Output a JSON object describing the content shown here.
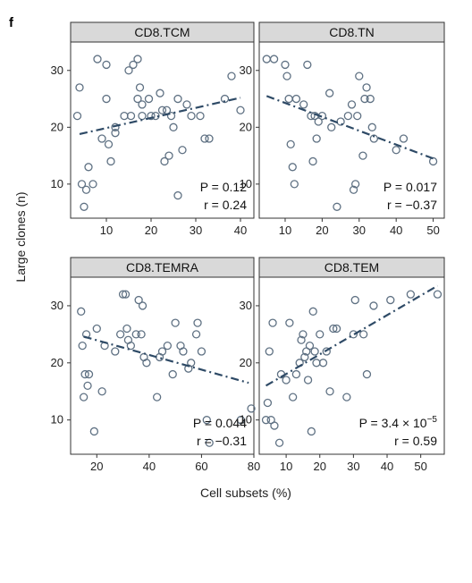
{
  "figure": {
    "panel_letter": "f",
    "xlabel": "Cell subsets (%)",
    "ylabel": "Large clones (n)"
  },
  "colors": {
    "point_stroke": "#5f7183",
    "trend_line": "#2e4a66",
    "strip_fill": "#d9d9d9"
  },
  "chart_data": [
    {
      "type": "scatter",
      "title": "CD8.TCM",
      "xlim": [
        2,
        43
      ],
      "ylim": [
        4,
        35
      ],
      "xticks": [
        10,
        20,
        30,
        40
      ],
      "yticks": [
        10,
        20,
        30
      ],
      "grid": false,
      "stats": {
        "p_text": "P = 0.12",
        "r_text": "r = 0.24"
      },
      "trend": {
        "x": [
          4,
          40
        ],
        "y": [
          18.8,
          25.2
        ]
      },
      "points": [
        {
          "x": 3.5,
          "y": 22
        },
        {
          "x": 4,
          "y": 27
        },
        {
          "x": 4.5,
          "y": 10
        },
        {
          "x": 5,
          "y": 6
        },
        {
          "x": 5.5,
          "y": 9
        },
        {
          "x": 6,
          "y": 13
        },
        {
          "x": 7,
          "y": 10
        },
        {
          "x": 8,
          "y": 32
        },
        {
          "x": 9,
          "y": 18
        },
        {
          "x": 10,
          "y": 31
        },
        {
          "x": 10,
          "y": 25
        },
        {
          "x": 10.5,
          "y": 17
        },
        {
          "x": 11,
          "y": 14
        },
        {
          "x": 12,
          "y": 19
        },
        {
          "x": 12,
          "y": 20
        },
        {
          "x": 14,
          "y": 22
        },
        {
          "x": 15,
          "y": 30
        },
        {
          "x": 15.5,
          "y": 22
        },
        {
          "x": 16,
          "y": 31
        },
        {
          "x": 17,
          "y": 32
        },
        {
          "x": 17.5,
          "y": 27
        },
        {
          "x": 17,
          "y": 25
        },
        {
          "x": 18,
          "y": 22
        },
        {
          "x": 18,
          "y": 24
        },
        {
          "x": 19.5,
          "y": 25
        },
        {
          "x": 20,
          "y": 22
        },
        {
          "x": 21,
          "y": 22
        },
        {
          "x": 22,
          "y": 26
        },
        {
          "x": 22.5,
          "y": 23
        },
        {
          "x": 23,
          "y": 14
        },
        {
          "x": 23.5,
          "y": 23
        },
        {
          "x": 24,
          "y": 15
        },
        {
          "x": 24.5,
          "y": 22
        },
        {
          "x": 25,
          "y": 20
        },
        {
          "x": 26,
          "y": 25
        },
        {
          "x": 26,
          "y": 8
        },
        {
          "x": 27,
          "y": 16
        },
        {
          "x": 28,
          "y": 24
        },
        {
          "x": 29,
          "y": 22
        },
        {
          "x": 31,
          "y": 22
        },
        {
          "x": 32,
          "y": 18
        },
        {
          "x": 33,
          "y": 18
        },
        {
          "x": 38,
          "y": 29
        },
        {
          "x": 40,
          "y": 23
        },
        {
          "x": 36.5,
          "y": 25
        }
      ]
    },
    {
      "type": "scatter",
      "title": "CD8.TN",
      "xlim": [
        3,
        53
      ],
      "ylim": [
        4,
        35
      ],
      "xticks": [
        10,
        20,
        30,
        40,
        50
      ],
      "yticks": [
        10,
        20,
        30
      ],
      "grid": false,
      "stats": {
        "p_text": "P = 0.017",
        "r_text": "r = −0.37"
      },
      "trend": {
        "x": [
          5,
          50
        ],
        "y": [
          25.5,
          14.5
        ]
      },
      "points": [
        {
          "x": 5,
          "y": 32
        },
        {
          "x": 7,
          "y": 32
        },
        {
          "x": 10,
          "y": 31
        },
        {
          "x": 10.5,
          "y": 29
        },
        {
          "x": 11,
          "y": 25
        },
        {
          "x": 11.5,
          "y": 17
        },
        {
          "x": 12,
          "y": 13
        },
        {
          "x": 12.5,
          "y": 10
        },
        {
          "x": 13,
          "y": 25
        },
        {
          "x": 15,
          "y": 24
        },
        {
          "x": 16,
          "y": 31
        },
        {
          "x": 17,
          "y": 22
        },
        {
          "x": 17.5,
          "y": 14
        },
        {
          "x": 18,
          "y": 22
        },
        {
          "x": 18.5,
          "y": 18
        },
        {
          "x": 19,
          "y": 21
        },
        {
          "x": 20,
          "y": 22
        },
        {
          "x": 22,
          "y": 26
        },
        {
          "x": 22.5,
          "y": 20
        },
        {
          "x": 24,
          "y": 6
        },
        {
          "x": 25,
          "y": 21
        },
        {
          "x": 27,
          "y": 22
        },
        {
          "x": 28,
          "y": 24
        },
        {
          "x": 28.5,
          "y": 9
        },
        {
          "x": 29,
          "y": 10
        },
        {
          "x": 29.5,
          "y": 22
        },
        {
          "x": 30,
          "y": 29
        },
        {
          "x": 31,
          "y": 15
        },
        {
          "x": 31.5,
          "y": 25
        },
        {
          "x": 32,
          "y": 27
        },
        {
          "x": 33,
          "y": 25
        },
        {
          "x": 33.5,
          "y": 20
        },
        {
          "x": 34,
          "y": 18
        },
        {
          "x": 40,
          "y": 16
        },
        {
          "x": 42,
          "y": 18
        },
        {
          "x": 50,
          "y": 14
        }
      ]
    },
    {
      "type": "scatter",
      "title": "CD8.TEMRA",
      "xlim": [
        10,
        80
      ],
      "ylim": [
        4,
        35
      ],
      "xticks": [
        20,
        40,
        60,
        80
      ],
      "yticks": [
        10,
        20,
        30
      ],
      "grid": false,
      "stats": {
        "p_text": "P = 0.044",
        "r_text": "r = −0.31"
      },
      "trend": {
        "x": [
          15,
          78
        ],
        "y": [
          24.6,
          16.5
        ]
      },
      "points": [
        {
          "x": 14,
          "y": 29
        },
        {
          "x": 14.5,
          "y": 23
        },
        {
          "x": 15,
          "y": 14
        },
        {
          "x": 15.5,
          "y": 18
        },
        {
          "x": 16,
          "y": 25
        },
        {
          "x": 16.5,
          "y": 16
        },
        {
          "x": 17,
          "y": 18
        },
        {
          "x": 19,
          "y": 8
        },
        {
          "x": 20,
          "y": 26
        },
        {
          "x": 22,
          "y": 15
        },
        {
          "x": 23,
          "y": 23
        },
        {
          "x": 27,
          "y": 22
        },
        {
          "x": 29,
          "y": 25
        },
        {
          "x": 30,
          "y": 32
        },
        {
          "x": 31,
          "y": 32
        },
        {
          "x": 31.5,
          "y": 26
        },
        {
          "x": 32,
          "y": 24
        },
        {
          "x": 33,
          "y": 23
        },
        {
          "x": 35,
          "y": 25
        },
        {
          "x": 36,
          "y": 31
        },
        {
          "x": 37,
          "y": 25
        },
        {
          "x": 37.5,
          "y": 30
        },
        {
          "x": 38,
          "y": 21
        },
        {
          "x": 39,
          "y": 20
        },
        {
          "x": 43,
          "y": 14
        },
        {
          "x": 44,
          "y": 21
        },
        {
          "x": 45,
          "y": 22
        },
        {
          "x": 47,
          "y": 23
        },
        {
          "x": 49,
          "y": 18
        },
        {
          "x": 50,
          "y": 27
        },
        {
          "x": 52,
          "y": 23
        },
        {
          "x": 53,
          "y": 22
        },
        {
          "x": 55,
          "y": 19
        },
        {
          "x": 56,
          "y": 20
        },
        {
          "x": 58,
          "y": 25
        },
        {
          "x": 58.5,
          "y": 27
        },
        {
          "x": 60,
          "y": 22
        },
        {
          "x": 62,
          "y": 10
        },
        {
          "x": 63,
          "y": 6
        },
        {
          "x": 75,
          "y": 10
        },
        {
          "x": 79,
          "y": 12
        }
      ]
    },
    {
      "type": "scatter",
      "title": "CD8.TEM",
      "xlim": [
        2,
        57
      ],
      "ylim": [
        4,
        35
      ],
      "xticks": [
        10,
        20,
        30,
        40,
        50
      ],
      "yticks": [
        10,
        20,
        30
      ],
      "grid": false,
      "stats": {
        "p_text": "P = 3.4 × 10",
        "p_exp": "−5",
        "r_text": "r = 0.59"
      },
      "trend": {
        "x": [
          4,
          55
        ],
        "y": [
          16,
          33.5
        ]
      },
      "points": [
        {
          "x": 4,
          "y": 10
        },
        {
          "x": 4.5,
          "y": 13
        },
        {
          "x": 5,
          "y": 22
        },
        {
          "x": 5.5,
          "y": 10
        },
        {
          "x": 6,
          "y": 27
        },
        {
          "x": 6.5,
          "y": 9
        },
        {
          "x": 8,
          "y": 6
        },
        {
          "x": 8.5,
          "y": 18
        },
        {
          "x": 10,
          "y": 17
        },
        {
          "x": 11,
          "y": 27
        },
        {
          "x": 12,
          "y": 14
        },
        {
          "x": 13,
          "y": 18
        },
        {
          "x": 14,
          "y": 20
        },
        {
          "x": 14.5,
          "y": 24
        },
        {
          "x": 15,
          "y": 25
        },
        {
          "x": 15.5,
          "y": 21
        },
        {
          "x": 16,
          "y": 22
        },
        {
          "x": 16.5,
          "y": 17
        },
        {
          "x": 17,
          "y": 23
        },
        {
          "x": 17.5,
          "y": 8
        },
        {
          "x": 18,
          "y": 29
        },
        {
          "x": 18.5,
          "y": 22
        },
        {
          "x": 19,
          "y": 20
        },
        {
          "x": 20,
          "y": 25
        },
        {
          "x": 21,
          "y": 20
        },
        {
          "x": 22,
          "y": 22
        },
        {
          "x": 23,
          "y": 15
        },
        {
          "x": 24,
          "y": 26
        },
        {
          "x": 25,
          "y": 26
        },
        {
          "x": 28,
          "y": 14
        },
        {
          "x": 30,
          "y": 25
        },
        {
          "x": 30.5,
          "y": 31
        },
        {
          "x": 33,
          "y": 25
        },
        {
          "x": 34,
          "y": 18
        },
        {
          "x": 36,
          "y": 30
        },
        {
          "x": 41,
          "y": 31
        },
        {
          "x": 47,
          "y": 32
        },
        {
          "x": 55,
          "y": 32
        }
      ]
    }
  ]
}
